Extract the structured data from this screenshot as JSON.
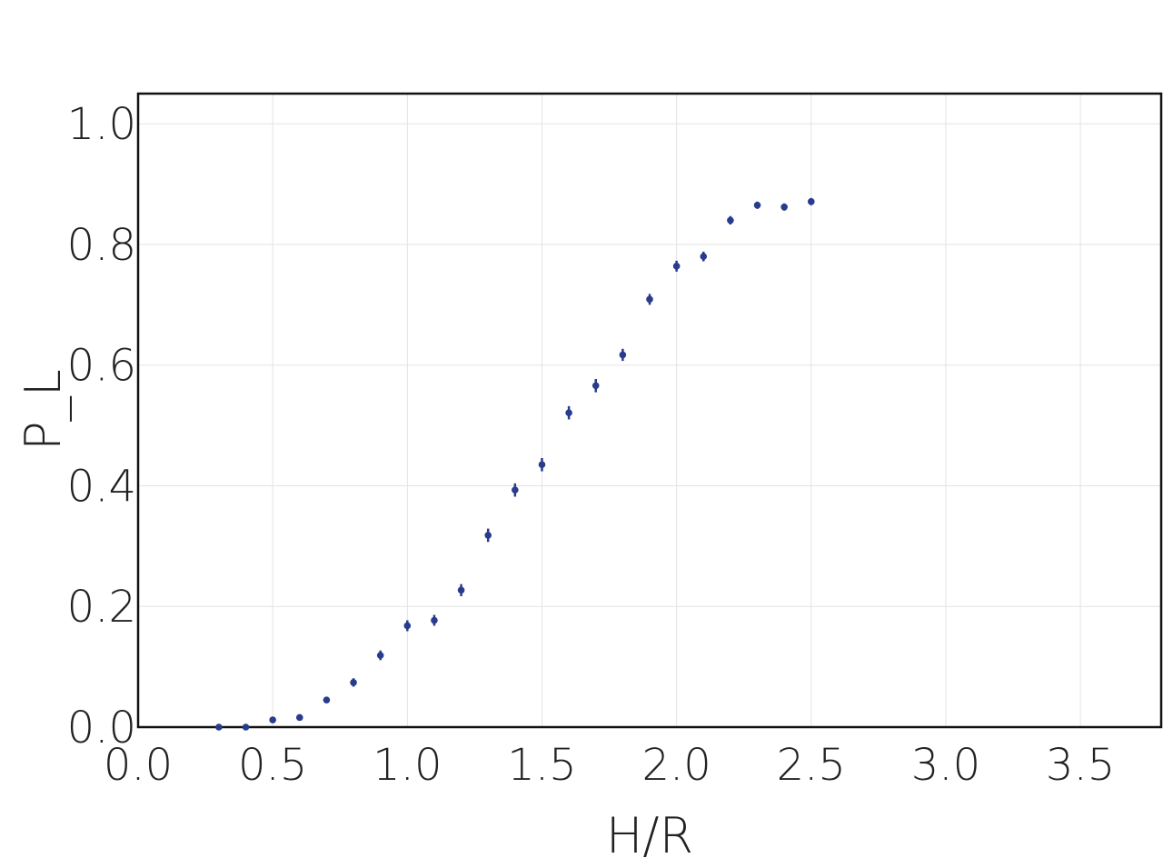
{
  "chart_data": {
    "type": "scatter",
    "title": "",
    "xlabel": "H/R",
    "ylabel": "P_L",
    "xlim": [
      0.0,
      3.8
    ],
    "ylim": [
      0.0,
      1.05
    ],
    "grid": true,
    "x_ticks": [
      0.0,
      0.5,
      1.0,
      1.5,
      2.0,
      2.5,
      3.0,
      3.5
    ],
    "x_tick_labels": [
      "0.0",
      "0.5",
      "1.0",
      "1.5",
      "2.0",
      "2.5",
      "3.0",
      "3.5"
    ],
    "y_ticks": [
      0.0,
      0.2,
      0.4,
      0.6,
      0.8,
      1.0
    ],
    "y_tick_labels": [
      "0.0",
      "0.2",
      "0.4",
      "0.6",
      "0.8",
      "1.0"
    ],
    "series": [
      {
        "color": "#283b8c",
        "x": [
          0.3,
          0.4,
          0.5,
          0.6,
          0.7,
          0.8,
          0.9,
          1.0,
          1.1,
          1.2,
          1.3,
          1.4,
          1.5,
          1.6,
          1.7,
          1.8,
          1.9,
          2.0,
          2.1,
          2.2,
          2.3,
          2.4,
          2.5
        ],
        "y": [
          0.0,
          0.0,
          0.012,
          0.016,
          0.045,
          0.074,
          0.119,
          0.168,
          0.177,
          0.227,
          0.318,
          0.393,
          0.435,
          0.521,
          0.566,
          0.617,
          0.709,
          0.764,
          0.78,
          0.84,
          0.865,
          0.862,
          0.871
        ],
        "yerr": [
          0.002,
          0.002,
          0.004,
          0.004,
          0.005,
          0.007,
          0.008,
          0.009,
          0.009,
          0.01,
          0.011,
          0.011,
          0.011,
          0.011,
          0.011,
          0.01,
          0.009,
          0.009,
          0.008,
          0.007,
          0.006,
          0.006,
          0.006
        ]
      }
    ]
  }
}
